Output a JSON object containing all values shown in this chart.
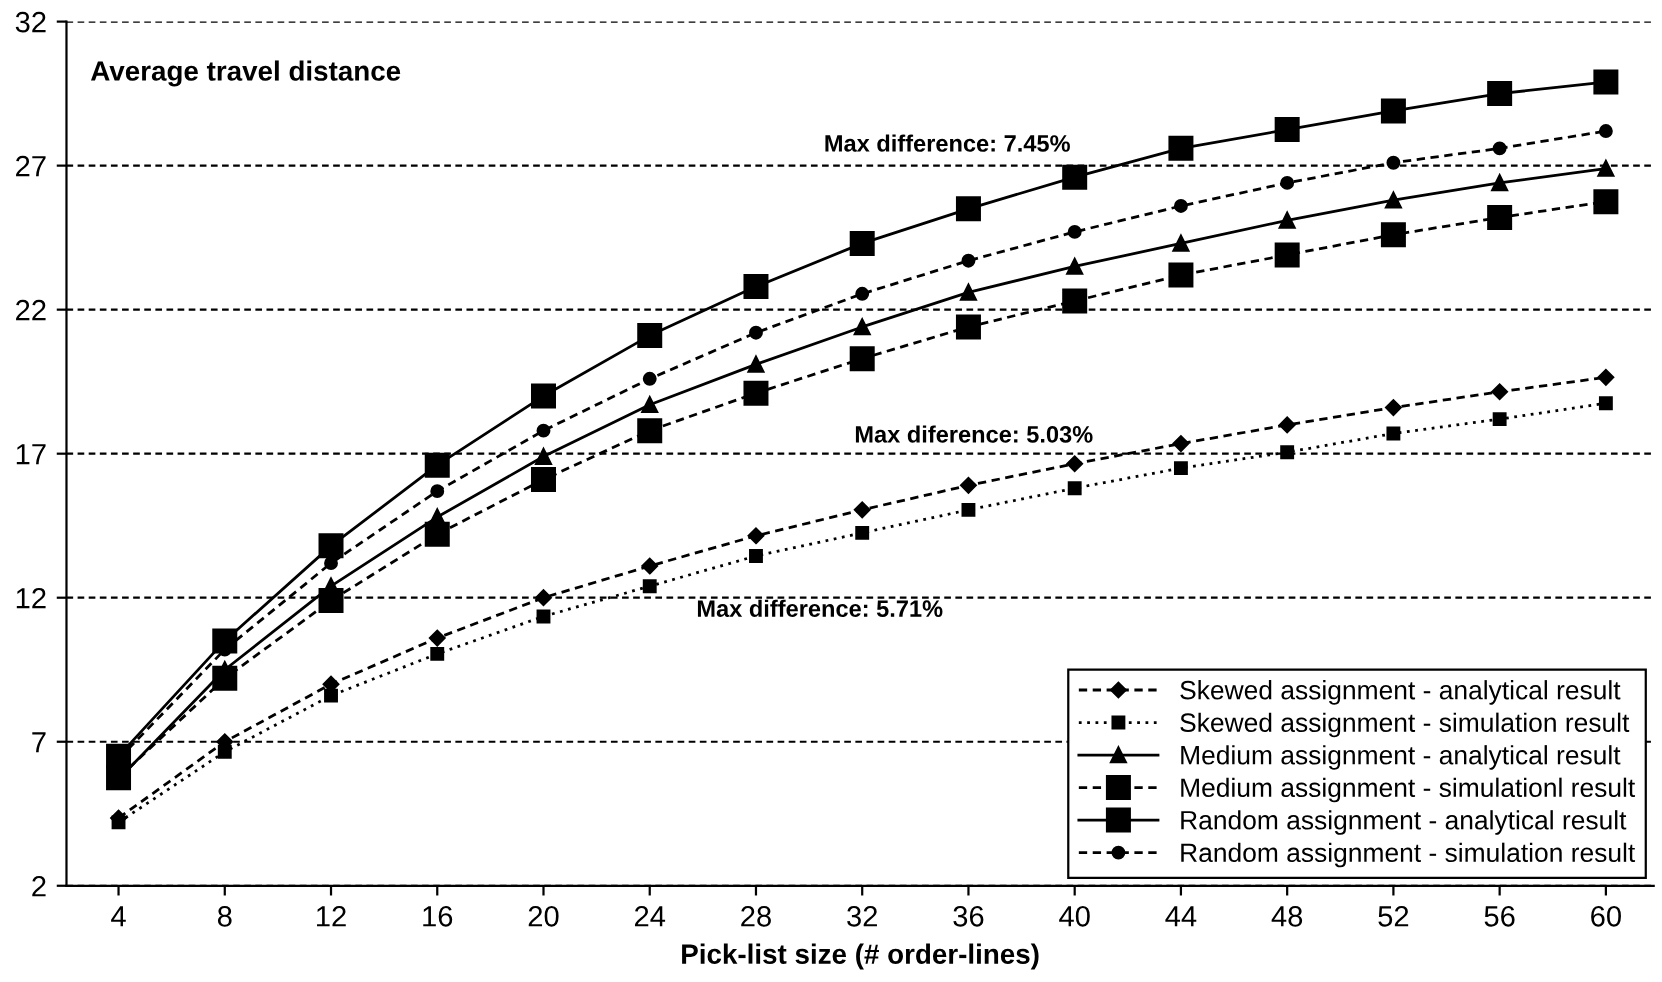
{
  "chart_data": {
    "type": "line",
    "xlabel": "Pick-list size (# order-lines)",
    "categories": [
      "4",
      "8",
      "12",
      "16",
      "20",
      "24",
      "28",
      "32",
      "36",
      "40",
      "44",
      "48",
      "52",
      "56",
      "60"
    ],
    "series": [
      {
        "name": "Skewed assignment - analytical result",
        "color": "#000000",
        "marker": "diamond",
        "line_style": "dashed",
        "values": [
          4.35,
          7.0,
          9.0,
          10.6,
          12.0,
          13.1,
          14.15,
          15.05,
          15.9,
          16.65,
          17.35,
          18.0,
          18.6,
          19.15,
          19.65
        ]
      },
      {
        "name": "Skewed assignment - simulation result",
        "color": "#000000",
        "marker": "square",
        "line_style": "dotted",
        "values": [
          4.2,
          6.65,
          8.6,
          10.05,
          11.35,
          12.4,
          13.45,
          14.25,
          15.05,
          15.8,
          16.5,
          17.05,
          17.7,
          18.2,
          18.75
        ]
      },
      {
        "name": "Medium assignment - analytical result",
        "color": "#000000",
        "marker": "triangle",
        "line_style": "solid",
        "values": [
          5.7,
          9.5,
          12.4,
          14.8,
          16.9,
          18.7,
          20.1,
          21.4,
          22.6,
          23.5,
          24.3,
          25.1,
          25.8,
          26.4,
          26.9
        ]
      },
      {
        "name": "Medium assignment - simulationl result",
        "color": "#000000",
        "marker": "square",
        "line_style": "dashed",
        "values": [
          5.75,
          9.2,
          11.9,
          14.2,
          16.1,
          17.8,
          19.1,
          20.3,
          21.4,
          22.3,
          23.2,
          23.9,
          24.6,
          25.2,
          25.75
        ]
      },
      {
        "name": "Random assignment - analytical result",
        "color": "#000000",
        "marker": "square",
        "line_style": "solid",
        "values": [
          6.5,
          10.5,
          13.8,
          16.6,
          19.0,
          21.1,
          22.8,
          24.3,
          25.5,
          26.6,
          27.6,
          28.25,
          28.9,
          29.5,
          29.9
        ]
      },
      {
        "name": "Random assignment - simulation result",
        "color": "#000000",
        "marker": "circle",
        "line_style": "dashed",
        "values": [
          6.4,
          10.2,
          13.2,
          15.7,
          17.8,
          19.6,
          21.2,
          22.55,
          23.7,
          24.7,
          25.6,
          26.4,
          27.1,
          27.6,
          28.2
        ]
      }
    ],
    "ylim": [
      2,
      32
    ],
    "yticks": [
      2,
      7,
      12,
      17,
      22,
      27,
      32
    ],
    "grid": "y",
    "legend": "bottom right",
    "annotations": [
      "Average travel distance",
      "Max difference: 7.45%",
      "Max diference: 5.03%",
      "Max difference: 5.71%"
    ]
  }
}
